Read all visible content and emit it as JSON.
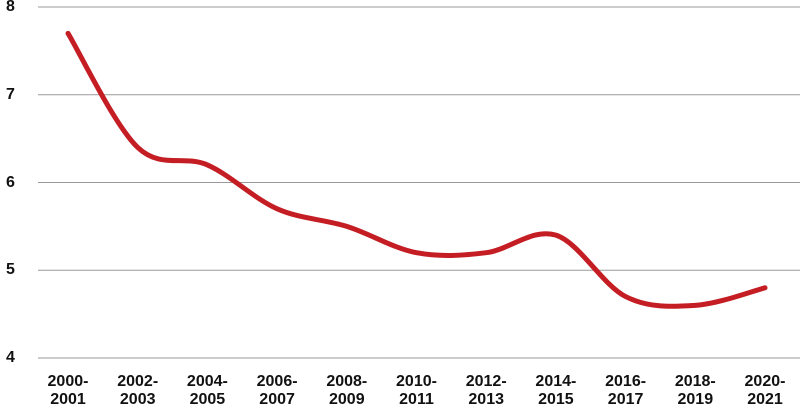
{
  "chart_data": {
    "type": "line",
    "categories": [
      "2000-\n2001",
      "2002-\n2003",
      "2004-\n2005",
      "2006-\n2007",
      "2008-\n2009",
      "2010-\n2011",
      "2012-\n2013",
      "2014-\n2015",
      "2016-\n2017",
      "2018-\n2019",
      "2020-\n2021"
    ],
    "values": [
      7.7,
      6.4,
      6.2,
      5.7,
      5.5,
      5.2,
      5.2,
      5.4,
      4.7,
      4.6,
      4.8
    ],
    "color": "#c41e24",
    "ylim": [
      4,
      8
    ],
    "yticks": [
      4,
      5,
      6,
      7,
      8
    ],
    "grid": true
  }
}
